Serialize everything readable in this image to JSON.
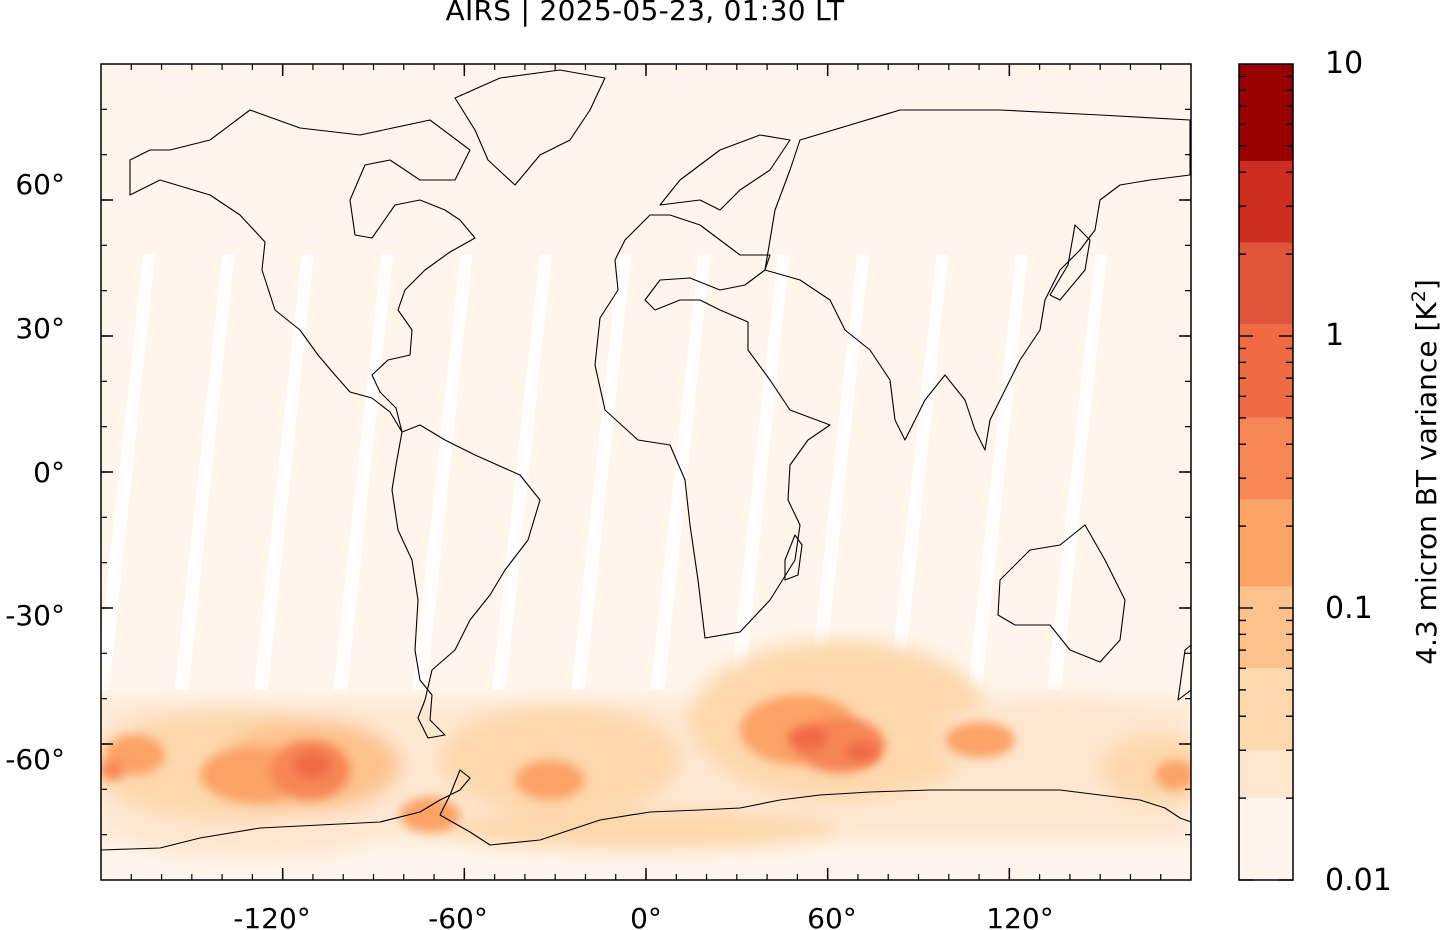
{
  "title": "AIRS | 2025-05-23, 01:30 LT",
  "map": {
    "projection": "equirectangular",
    "lon_range": [
      -180,
      180
    ],
    "lat_range": [
      -90,
      90
    ],
    "x_ticks": [
      -120,
      -60,
      0,
      60,
      120
    ],
    "y_ticks": [
      60,
      30,
      0,
      -30,
      -60
    ],
    "x_tick_labels": [
      "-120°",
      "-60°",
      "0°",
      "60°",
      "120°"
    ],
    "y_tick_labels": [
      "60°",
      "30°",
      "0°",
      "-30°",
      "-60°"
    ],
    "background_color": "#fff5eb",
    "data_gap_color": "#ffffff",
    "coastline_color": "#000000",
    "orbit_gap_count": 13
  },
  "colorbar": {
    "label": "4.3 micron BT variance [K",
    "label_sup": "2",
    "label_close": "]",
    "scale": "log",
    "range": [
      0.01,
      10
    ],
    "tick_values": [
      10,
      1,
      0.1,
      0.01
    ],
    "tick_labels": [
      "10",
      "1",
      "0.1",
      "0.01"
    ],
    "bins": [
      {
        "from": 0.01,
        "to": 0.02,
        "color": "#fff5eb"
      },
      {
        "from": 0.02,
        "to": 0.03,
        "color": "#fee6ce"
      },
      {
        "from": 0.03,
        "to": 0.06,
        "color": "#fdd8ac"
      },
      {
        "from": 0.06,
        "to": 0.12,
        "color": "#fdc28c"
      },
      {
        "from": 0.12,
        "to": 0.25,
        "color": "#fca366"
      },
      {
        "from": 0.25,
        "to": 0.5,
        "color": "#f78655"
      },
      {
        "from": 0.5,
        "to": 1.1,
        "color": "#f06a44"
      },
      {
        "from": 1.1,
        "to": 2.2,
        "color": "#e0543a"
      },
      {
        "from": 2.2,
        "to": 4.4,
        "color": "#cc2d1f"
      },
      {
        "from": 4.4,
        "to": 10,
        "color": "#990000"
      }
    ]
  },
  "regions": [
    {
      "name": "pacific-south-wave-activity",
      "lon": -105,
      "lat": -60,
      "level": 0.6
    },
    {
      "name": "pacific-south-west",
      "lon": -165,
      "lat": -60,
      "level": 0.3
    },
    {
      "name": "drake-passage",
      "lon": -65,
      "lat": -65,
      "level": 0.4
    },
    {
      "name": "south-atlantic",
      "lon": -25,
      "lat": -57,
      "level": 0.25
    },
    {
      "name": "southern-indian-ocean",
      "lon": 60,
      "lat": -57,
      "level": 1.2
    },
    {
      "name": "south-of-australia",
      "lon": 110,
      "lat": -60,
      "level": 0.3
    },
    {
      "name": "antarctic-coast",
      "lon": 0,
      "lat": -72,
      "level": 0.1
    }
  ]
}
